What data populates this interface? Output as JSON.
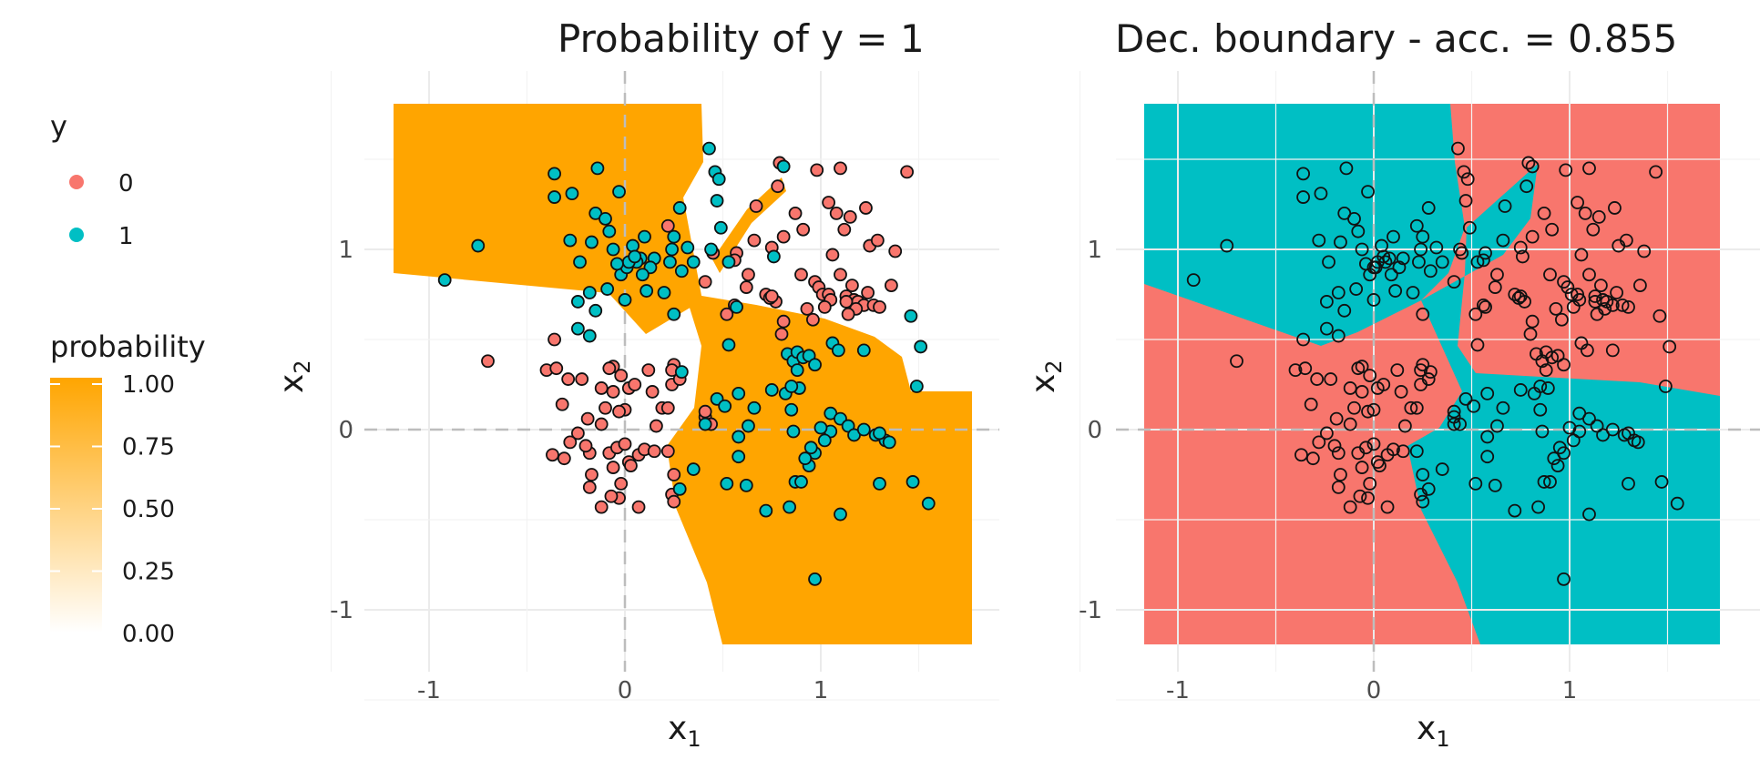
{
  "legend_y": {
    "title": "y",
    "items": [
      {
        "label": "0",
        "color": "#F8766D"
      },
      {
        "label": "1",
        "color": "#00BFC4"
      }
    ]
  },
  "legend_probability": {
    "title": "probability",
    "ticks": [
      "1.00",
      "0.75",
      "0.50",
      "0.25",
      "0.00"
    ],
    "tick_values": [
      1.0,
      0.75,
      0.5,
      0.25,
      0.0
    ],
    "color_high": "#FFA500",
    "color_low": "#FFFFFF"
  },
  "chart_data": [
    {
      "type": "heatmap",
      "title": "Probability of y = 1",
      "xlabel": "x",
      "xlabel_sub": "1",
      "ylabel": "x",
      "ylabel_sub": "2",
      "xlim": [
        -1.2,
        1.8
      ],
      "ylim": [
        -1.2,
        1.8
      ],
      "x_ticks": [
        -1,
        0,
        1
      ],
      "y_ticks": [
        -1,
        0,
        1
      ],
      "x_tick_labels": [
        "-1",
        "0",
        "1"
      ],
      "y_tick_labels": [
        "-1",
        "0",
        "1"
      ],
      "fill": "probability",
      "region_high_color": "#FFA500",
      "region_low_color": "#FFFFFF",
      "grid": true,
      "reference_lines": [
        0,
        0
      ]
    },
    {
      "type": "heatmap",
      "title": "Dec. boundary - acc. = 0.855",
      "xlabel": "x",
      "xlabel_sub": "1",
      "ylabel": "x",
      "ylabel_sub": "2",
      "xlim": [
        -1.2,
        1.8
      ],
      "ylim": [
        -1.2,
        1.8
      ],
      "x_ticks": [
        -1,
        0,
        1
      ],
      "y_ticks": [
        -1,
        0,
        1
      ],
      "x_tick_labels": [
        "-1",
        "0",
        "1"
      ],
      "y_tick_labels": [
        "-1",
        "0",
        "1"
      ],
      "fill": "predicted class",
      "class_colors": {
        "0": "#F8766D",
        "1": "#00BFC4"
      },
      "grid": true,
      "reference_lines": [
        0,
        0
      ]
    }
  ],
  "points": {
    "class_1": [
      [
        -0.92,
        0.83
      ],
      [
        -0.75,
        1.02
      ],
      [
        -0.36,
        1.42
      ],
      [
        -0.36,
        1.29
      ],
      [
        -0.27,
        1.31
      ],
      [
        -0.14,
        1.45
      ],
      [
        -0.03,
        1.32
      ],
      [
        0.1,
        1.07
      ],
      [
        0.15,
        0.95
      ],
      [
        0.04,
        1.02
      ],
      [
        0.0,
        0.9
      ],
      [
        -0.02,
        0.86
      ],
      [
        -0.15,
        1.2
      ],
      [
        -0.1,
        1.17
      ],
      [
        -0.28,
        1.05
      ],
      [
        -0.17,
        1.04
      ],
      [
        -0.08,
        1.1
      ],
      [
        -0.06,
        1.0
      ],
      [
        -0.23,
        0.93
      ],
      [
        -0.24,
        0.71
      ],
      [
        -0.15,
        0.66
      ],
      [
        -0.18,
        0.76
      ],
      [
        -0.09,
        0.78
      ],
      [
        -0.18,
        0.52
      ],
      [
        -0.24,
        0.56
      ],
      [
        0.0,
        0.72
      ],
      [
        0.01,
        0.9
      ],
      [
        0.08,
        0.95
      ],
      [
        0.11,
        0.77
      ],
      [
        0.2,
        0.76
      ],
      [
        0.25,
        1.07
      ],
      [
        0.24,
        1.0
      ],
      [
        0.23,
        0.93
      ],
      [
        0.28,
        1.23
      ],
      [
        0.32,
        1.01
      ],
      [
        0.29,
        0.88
      ],
      [
        0.35,
        0.93
      ],
      [
        0.43,
        1.56
      ],
      [
        0.46,
        1.43
      ],
      [
        0.48,
        1.39
      ],
      [
        0.47,
        1.27
      ],
      [
        0.49,
        1.12
      ],
      [
        0.53,
        0.93
      ],
      [
        0.44,
        1.0
      ],
      [
        0.57,
        0.68
      ],
      [
        0.53,
        0.47
      ],
      [
        0.47,
        0.17
      ],
      [
        0.51,
        0.13
      ],
      [
        0.41,
        0.03
      ],
      [
        0.29,
        0.32
      ],
      [
        0.25,
        0.64
      ],
      [
        0.83,
        0.42
      ],
      [
        0.86,
        0.38
      ],
      [
        0.88,
        0.43
      ],
      [
        0.91,
        0.4
      ],
      [
        0.94,
        0.41
      ],
      [
        0.97,
        0.36
      ],
      [
        1.06,
        0.48
      ],
      [
        1.09,
        0.44
      ],
      [
        1.05,
        0.09
      ],
      [
        1.1,
        0.06
      ],
      [
        1.14,
        0.02
      ],
      [
        1.17,
        -0.03
      ],
      [
        1.05,
        -0.01
      ],
      [
        1.02,
        -0.06
      ],
      [
        1.0,
        0.01
      ],
      [
        0.97,
        -0.13
      ],
      [
        0.95,
        -0.1
      ],
      [
        0.94,
        -0.2
      ],
      [
        0.92,
        -0.16
      ],
      [
        0.86,
        -0.01
      ],
      [
        0.82,
        0.2
      ],
      [
        0.89,
        0.23
      ],
      [
        0.85,
        0.11
      ],
      [
        0.75,
        0.22
      ],
      [
        0.66,
        0.12
      ],
      [
        0.63,
        0.02
      ],
      [
        0.58,
        -0.04
      ],
      [
        0.58,
        -0.15
      ],
      [
        0.52,
        -0.3
      ],
      [
        0.62,
        -0.31
      ],
      [
        0.72,
        -0.45
      ],
      [
        0.84,
        -0.43
      ],
      [
        0.87,
        -0.29
      ],
      [
        0.9,
        -0.29
      ],
      [
        0.97,
        -0.83
      ],
      [
        1.1,
        -0.47
      ],
      [
        1.28,
        -0.03
      ],
      [
        1.33,
        -0.06
      ],
      [
        1.35,
        -0.07
      ],
      [
        1.47,
        -0.29
      ],
      [
        1.46,
        0.63
      ],
      [
        1.51,
        0.46
      ],
      [
        1.49,
        0.24
      ],
      [
        1.55,
        -0.41
      ],
      [
        1.3,
        -0.3
      ],
      [
        1.22,
        0.44
      ],
      [
        0.76,
        0.96
      ],
      [
        0.81,
        1.46
      ],
      [
        0.06,
        0.93
      ],
      [
        0.02,
        0.93
      ],
      [
        0.13,
        0.9
      ],
      [
        -0.04,
        0.92
      ],
      [
        0.09,
        0.86
      ],
      [
        0.05,
        0.96
      ],
      [
        0.85,
        0.24
      ],
      [
        0.88,
        0.33
      ],
      [
        1.22,
        0.0
      ],
      [
        1.3,
        -0.02
      ],
      [
        0.28,
        -0.33
      ],
      [
        0.35,
        -0.22
      ],
      [
        0.58,
        0.2
      ]
    ],
    "class_0": [
      [
        -0.7,
        0.38
      ],
      [
        -0.4,
        0.33
      ],
      [
        -0.35,
        0.34
      ],
      [
        -0.36,
        0.5
      ],
      [
        -0.32,
        0.14
      ],
      [
        -0.29,
        0.28
      ],
      [
        -0.22,
        0.28
      ],
      [
        -0.19,
        0.06
      ],
      [
        -0.12,
        0.23
      ],
      [
        -0.1,
        0.12
      ],
      [
        -0.06,
        0.21
      ],
      [
        -0.06,
        0.35
      ],
      [
        -0.08,
        0.34
      ],
      [
        -0.02,
        0.3
      ],
      [
        0.02,
        0.23
      ],
      [
        0.05,
        0.25
      ],
      [
        0.12,
        0.33
      ],
      [
        0.14,
        0.21
      ],
      [
        0.19,
        0.12
      ],
      [
        0.25,
        0.36
      ],
      [
        0.24,
        0.33
      ],
      [
        0.24,
        0.25
      ],
      [
        0.28,
        0.28
      ],
      [
        0.22,
        0.12
      ],
      [
        0.16,
        0.02
      ],
      [
        0.0,
        0.11
      ],
      [
        -0.03,
        0.1
      ],
      [
        -0.12,
        0.03
      ],
      [
        -0.08,
        -0.13
      ],
      [
        -0.04,
        -0.1
      ],
      [
        0.0,
        -0.08
      ],
      [
        0.02,
        -0.18
      ],
      [
        0.03,
        -0.2
      ],
      [
        0.07,
        -0.14
      ],
      [
        0.1,
        -0.11
      ],
      [
        0.15,
        -0.12
      ],
      [
        -0.06,
        -0.21
      ],
      [
        -0.18,
        -0.13
      ],
      [
        -0.2,
        -0.09
      ],
      [
        -0.24,
        -0.02
      ],
      [
        -0.28,
        -0.07
      ],
      [
        -0.31,
        -0.16
      ],
      [
        -0.37,
        -0.14
      ],
      [
        -0.17,
        -0.25
      ],
      [
        -0.18,
        -0.32
      ],
      [
        -0.12,
        -0.43
      ],
      [
        -0.02,
        -0.3
      ],
      [
        -0.03,
        -0.38
      ],
      [
        0.07,
        -0.43
      ],
      [
        -0.07,
        -0.37
      ],
      [
        0.25,
        -0.25
      ],
      [
        0.24,
        -0.36
      ],
      [
        0.25,
        -0.4
      ],
      [
        0.22,
        -0.12
      ],
      [
        0.41,
        0.07
      ],
      [
        0.44,
        0.03
      ],
      [
        0.52,
        0.64
      ],
      [
        0.62,
        0.79
      ],
      [
        0.67,
        1.24
      ],
      [
        0.81,
        1.07
      ],
      [
        0.78,
        1.35
      ],
      [
        0.79,
        1.48
      ],
      [
        0.87,
        1.2
      ],
      [
        0.91,
        1.11
      ],
      [
        0.98,
        1.44
      ],
      [
        1.1,
        1.45
      ],
      [
        1.08,
        1.2
      ],
      [
        1.12,
        1.11
      ],
      [
        1.15,
        1.18
      ],
      [
        1.23,
        1.23
      ],
      [
        1.06,
        0.97
      ],
      [
        1.1,
        0.86
      ],
      [
        1.16,
        0.8
      ],
      [
        1.13,
        0.74
      ],
      [
        1.17,
        0.72
      ],
      [
        1.19,
        0.71
      ],
      [
        1.22,
        0.69
      ],
      [
        1.27,
        0.69
      ],
      [
        1.3,
        0.68
      ],
      [
        1.25,
        1.02
      ],
      [
        1.29,
        1.05
      ],
      [
        1.38,
        0.99
      ],
      [
        1.44,
        1.43
      ],
      [
        0.9,
        0.86
      ],
      [
        0.97,
        0.82
      ],
      [
        0.99,
        0.79
      ],
      [
        1.01,
        0.75
      ],
      [
        1.04,
        0.75
      ],
      [
        1.05,
        0.72
      ],
      [
        0.93,
        0.67
      ],
      [
        0.96,
        0.61
      ],
      [
        1.02,
        0.68
      ],
      [
        0.77,
        0.71
      ],
      [
        0.72,
        0.75
      ],
      [
        0.74,
        0.73
      ],
      [
        0.75,
        0.74
      ],
      [
        0.81,
        0.6
      ],
      [
        0.8,
        0.53
      ],
      [
        0.56,
        0.69
      ],
      [
        0.63,
        0.86
      ],
      [
        0.57,
        0.98
      ],
      [
        0.45,
        0.98
      ],
      [
        0.41,
        0.82
      ],
      [
        0.66,
        1.05
      ],
      [
        0.75,
        1.01
      ],
      [
        0.22,
        1.13
      ],
      [
        0.41,
        0.1
      ],
      [
        1.04,
        1.26
      ],
      [
        1.18,
        0.67
      ],
      [
        1.13,
        0.71
      ],
      [
        1.14,
        0.64
      ],
      [
        1.24,
        0.76
      ],
      [
        1.36,
        0.8
      ],
      [
        0.56,
        0.94
      ]
    ]
  }
}
